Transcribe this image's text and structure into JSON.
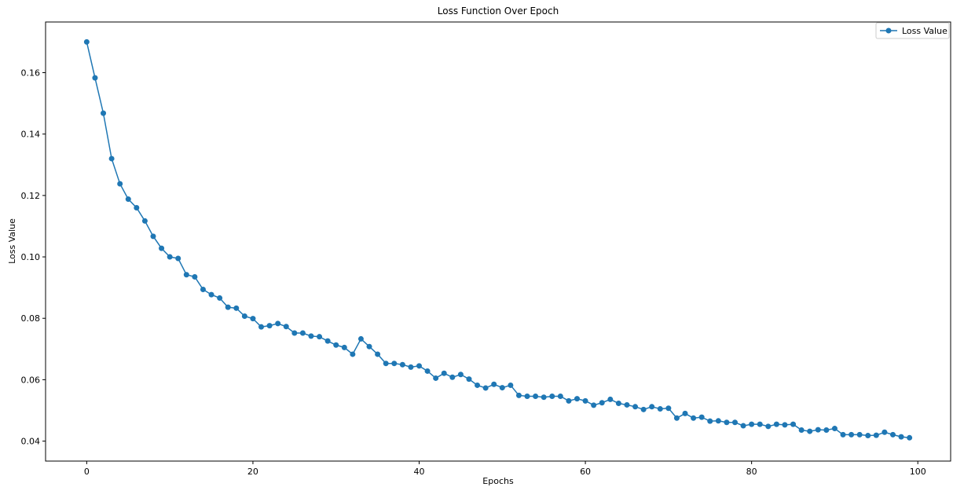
{
  "chart_data": {
    "type": "line",
    "title": "Loss Function Over Epoch",
    "xlabel": "Epochs",
    "ylabel": "Loss Value",
    "xlim": [
      -4.95,
      103.95
    ],
    "ylim": [
      0.0335,
      0.1765
    ],
    "xticks": [
      0,
      20,
      40,
      60,
      80,
      100
    ],
    "yticks": [
      0.04,
      0.06,
      0.08,
      0.1,
      0.12,
      0.14,
      0.16
    ],
    "ytick_labels": [
      "0.04",
      "0.06",
      "0.08",
      "0.10",
      "0.12",
      "0.14",
      "0.16"
    ],
    "xtick_labels": [
      "0",
      "20",
      "40",
      "60",
      "80",
      "100"
    ],
    "grid": false,
    "legend_position": "top-right",
    "line_color": "#1f77b4",
    "series": [
      {
        "name": "Loss Value",
        "x": [
          0,
          1,
          2,
          3,
          4,
          5,
          6,
          7,
          8,
          9,
          10,
          11,
          12,
          13,
          14,
          15,
          16,
          17,
          18,
          19,
          20,
          21,
          22,
          23,
          24,
          25,
          26,
          27,
          28,
          29,
          30,
          31,
          32,
          33,
          34,
          35,
          36,
          37,
          38,
          39,
          40,
          41,
          42,
          43,
          44,
          45,
          46,
          47,
          48,
          49,
          50,
          51,
          52,
          53,
          54,
          55,
          56,
          57,
          58,
          59,
          60,
          61,
          62,
          63,
          64,
          65,
          66,
          67,
          68,
          69,
          70,
          71,
          72,
          73,
          74,
          75,
          76,
          77,
          78,
          79,
          80,
          81,
          82,
          83,
          84,
          85,
          86,
          87,
          88,
          89,
          90,
          91,
          92,
          93,
          94,
          95,
          96,
          97,
          98,
          99
        ],
        "values": [
          0.17,
          0.1583,
          0.1468,
          0.132,
          0.1238,
          0.1188,
          0.116,
          0.1117,
          0.1067,
          0.1028,
          0.1,
          0.0995,
          0.0942,
          0.0935,
          0.0894,
          0.0877,
          0.0866,
          0.0836,
          0.0833,
          0.0807,
          0.0799,
          0.0772,
          0.0776,
          0.0783,
          0.0773,
          0.0752,
          0.0752,
          0.0742,
          0.074,
          0.0726,
          0.0713,
          0.0705,
          0.0683,
          0.0733,
          0.0708,
          0.0683,
          0.0653,
          0.0653,
          0.0649,
          0.0641,
          0.0645,
          0.0628,
          0.0605,
          0.0621,
          0.0608,
          0.0617,
          0.0602,
          0.0582,
          0.0573,
          0.0585,
          0.0574,
          0.0582,
          0.0549,
          0.0546,
          0.0546,
          0.0543,
          0.0546,
          0.0546,
          0.0531,
          0.0538,
          0.0531,
          0.0517,
          0.0525,
          0.0536,
          0.0523,
          0.0518,
          0.0512,
          0.0503,
          0.0512,
          0.0505,
          0.0507,
          0.0475,
          0.049,
          0.0475,
          0.0478,
          0.0465,
          0.0466,
          0.0461,
          0.0461,
          0.045,
          0.0455,
          0.0455,
          0.0448,
          0.0455,
          0.0453,
          0.0455,
          0.0436,
          0.0432,
          0.0437,
          0.0436,
          0.0441,
          0.0421,
          0.0421,
          0.0421,
          0.0418,
          0.0419,
          0.0429,
          0.0421,
          0.0414,
          0.0411
        ]
      }
    ]
  }
}
